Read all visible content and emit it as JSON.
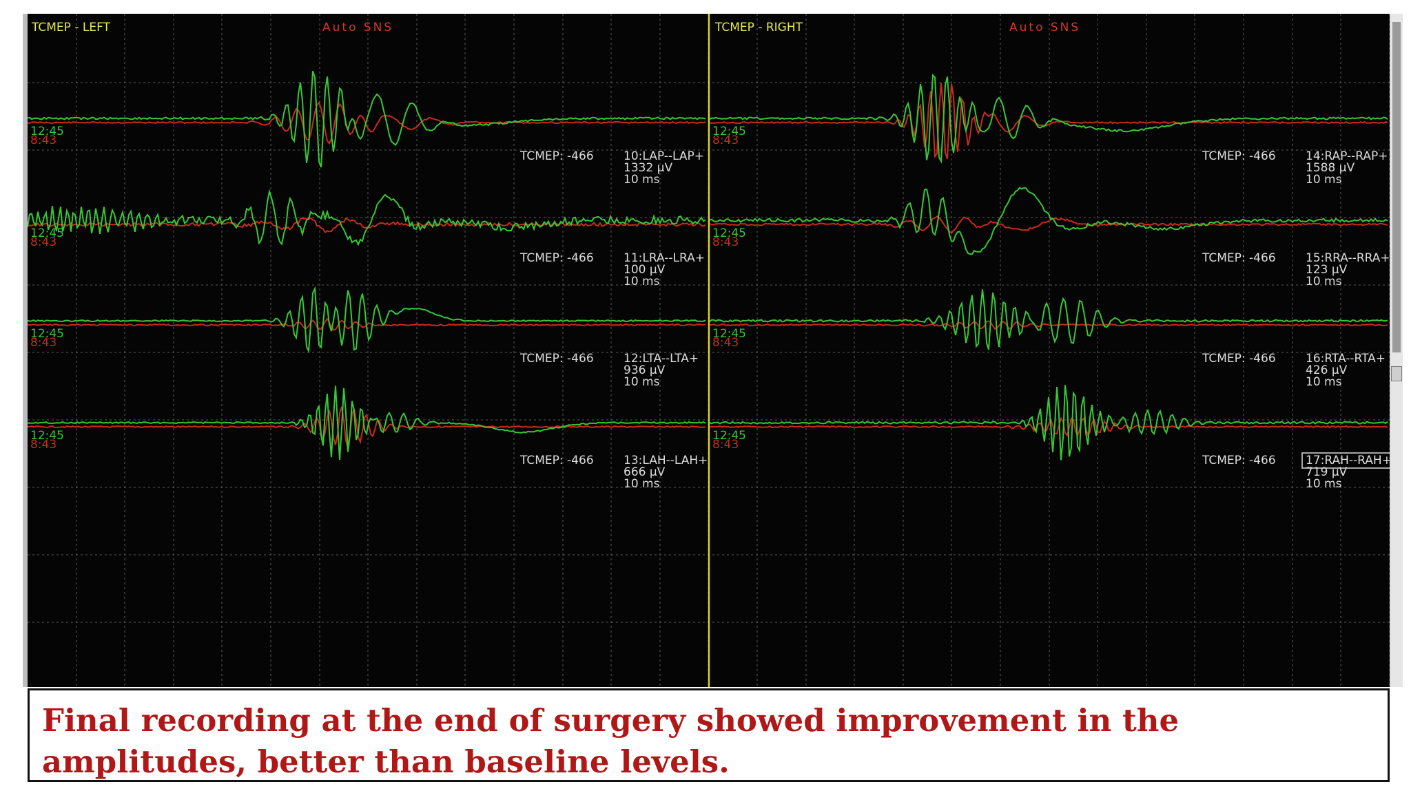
{
  "panels": [
    {
      "title": "TCMEP - LEFT",
      "mode": "Auto SNS",
      "traces": [
        {
          "tcmep": "TCMEP: -466",
          "channel": "10:LAP--LAP+",
          "amplitude": "1332 µV",
          "timebase": "10 ms",
          "time_new": "12:45",
          "time_old": "8:43"
        },
        {
          "tcmep": "TCMEP: -466",
          "channel": "11:LRA--LRA+",
          "amplitude": "100 µV",
          "timebase": "10 ms",
          "time_new": "12:45",
          "time_old": "8:43"
        },
        {
          "tcmep": "TCMEP: -466",
          "channel": "12:LTA--LTA+",
          "amplitude": "936 µV",
          "timebase": "10 ms",
          "time_new": "12:45",
          "time_old": "8:43"
        },
        {
          "tcmep": "TCMEP: -466",
          "channel": "13:LAH--LAH+",
          "amplitude": "666 µV",
          "timebase": "10 ms",
          "time_new": "12:45",
          "time_old": "8:43"
        }
      ]
    },
    {
      "title": "TCMEP - RIGHT",
      "mode": "Auto SNS",
      "traces": [
        {
          "tcmep": "TCMEP: -466",
          "channel": "14:RAP--RAP+",
          "amplitude": "1588 µV",
          "timebase": "10 ms",
          "time_new": "12:45",
          "time_old": "8:43"
        },
        {
          "tcmep": "TCMEP: -466",
          "channel": "15:RRA--RRA+",
          "amplitude": "123 µV",
          "timebase": "10 ms",
          "time_new": "12:45",
          "time_old": "8:43"
        },
        {
          "tcmep": "TCMEP: -466",
          "channel": "16:RTA--RTA+",
          "amplitude": "426 µV",
          "timebase": "10 ms",
          "time_new": "12:45",
          "time_old": "8:43"
        },
        {
          "tcmep": "TCMEP: -466",
          "channel": "17:RAH--RAH+",
          "amplitude": "719 µV",
          "timebase": "10 ms",
          "time_new": "12:45",
          "time_old": "8:43",
          "selected": true
        }
      ]
    }
  ],
  "caption": "Final recording at the end of surgery showed improvement in the amplitudes, better than baseline levels.",
  "colors": {
    "background": "#050505",
    "grid": "#5a5a5a",
    "current_trace": "#37c837",
    "baseline_trace": "#cc2a1c",
    "title_text": "#e8e84a",
    "mode_text": "#d23a28",
    "label_text": "#dcdcdc",
    "divider": "#d7d22a",
    "caption_text": "#b01717"
  }
}
